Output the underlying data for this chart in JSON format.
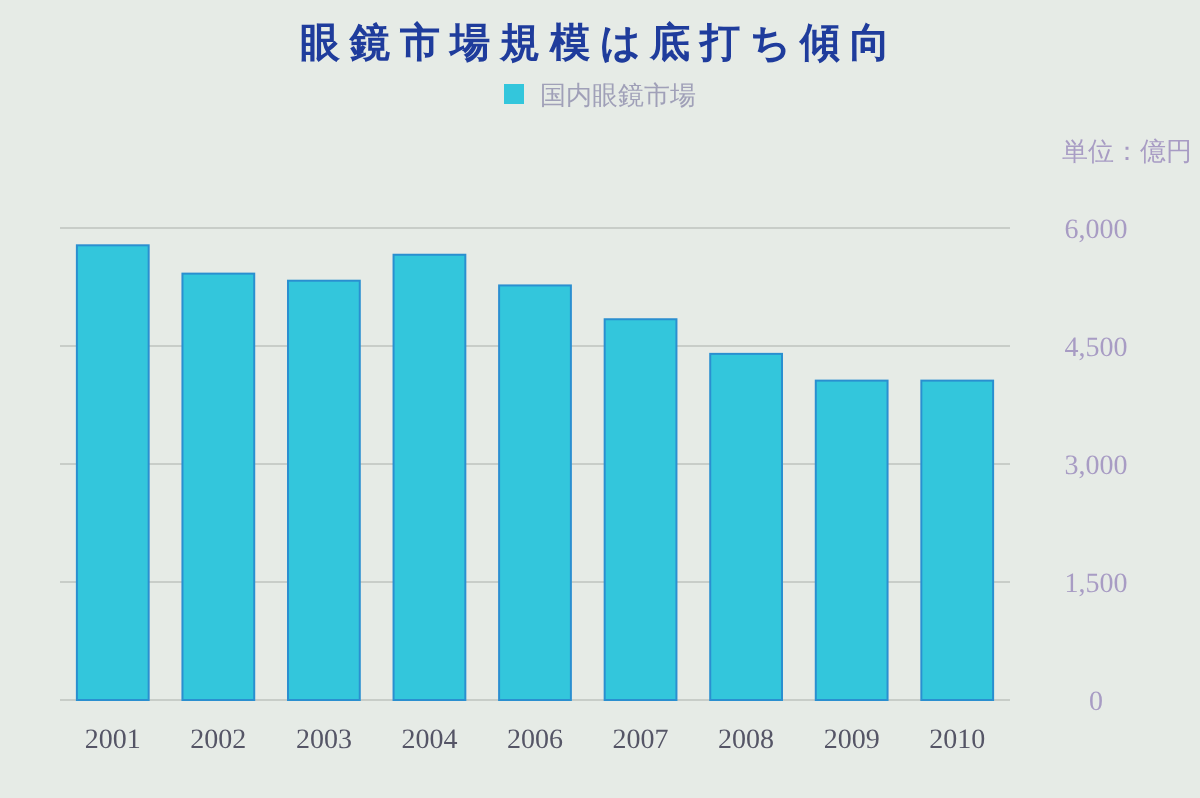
{
  "chart_data": {
    "type": "bar",
    "title": "眼鏡市場規模は底打ち傾向",
    "categories": [
      "2001",
      "2002",
      "2003",
      "2004",
      "2006",
      "2007",
      "2008",
      "2009",
      "2010"
    ],
    "series": [
      {
        "name": "国内眼鏡市場",
        "color": "#33c6dc",
        "values": [
          5780,
          5420,
          5330,
          5660,
          5270,
          4840,
          4400,
          4060,
          4060
        ]
      }
    ],
    "ylim": [
      0,
      6000
    ],
    "yticks": [
      0,
      {
        "value": 1500,
        "label": "1,500"
      },
      {
        "value": 3000,
        "label": "3,000"
      },
      {
        "value": 4500,
        "label": "4,500"
      },
      {
        "value": 6000,
        "label": "6,000"
      }
    ],
    "grid": "y",
    "legend": "top",
    "annotations": [
      "単位：億円"
    ]
  }
}
